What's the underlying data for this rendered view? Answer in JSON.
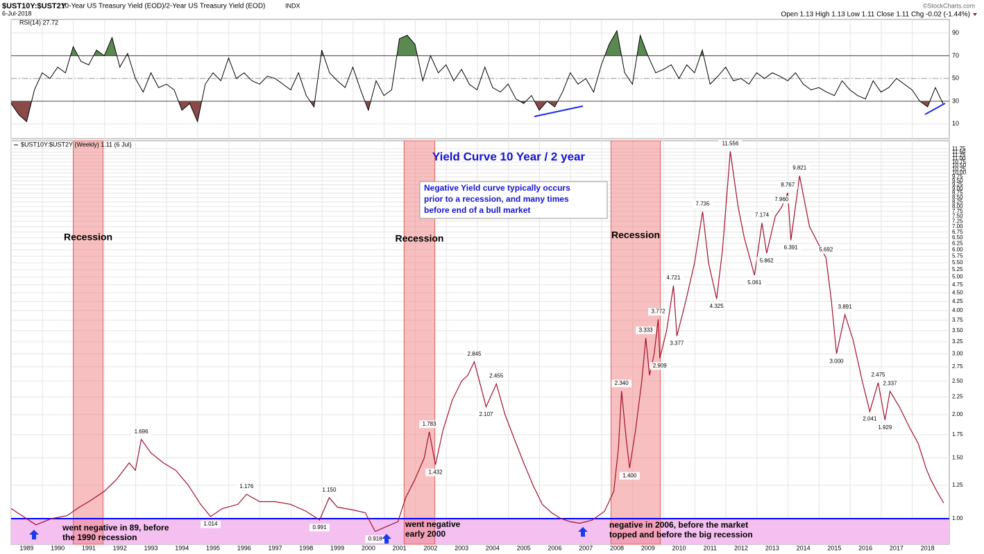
{
  "header": {
    "symbol": "$UST10Y:$UST2Y",
    "description": "10-Year US Treasury Yield (EOD)/2-Year US Treasury Yield (EOD)",
    "exchange": "INDX",
    "date": "6-Jul-2018",
    "source": "©StockCharts.com",
    "quote": "Open 1.13 High 1.13 Low 1.11 Close 1.11 Chg -0.02 (-1.44%)"
  },
  "chart_data": [
    {
      "type": "line",
      "legend": "RSI(14) 27.72",
      "color": "#000000",
      "overbought": 70,
      "oversold": 30,
      "midline": 50,
      "overbought_color": "#5a8a50",
      "oversold_color": "#8a4a48",
      "xlim": [
        1988.5,
        2018.7
      ],
      "ylim": [
        -3,
        102
      ],
      "yticks": [
        10,
        30,
        50,
        70,
        90
      ],
      "grid": true,
      "x": [
        1988.5,
        1988.75,
        1989,
        1989.25,
        1989.5,
        1989.75,
        1990,
        1990.25,
        1990.5,
        1990.75,
        1991,
        1991.25,
        1991.5,
        1991.75,
        1992,
        1992.25,
        1992.5,
        1992.75,
        1993,
        1993.25,
        1993.5,
        1993.75,
        1994,
        1994.25,
        1994.5,
        1994.75,
        1995,
        1995.25,
        1995.5,
        1995.75,
        1996,
        1996.25,
        1996.5,
        1996.75,
        1997,
        1997.25,
        1997.5,
        1997.75,
        1998,
        1998.25,
        1998.5,
        1998.75,
        1999,
        1999.25,
        1999.5,
        1999.75,
        2000,
        2000.25,
        2000.5,
        2000.75,
        2001,
        2001.25,
        2001.5,
        2001.75,
        2002,
        2002.25,
        2002.5,
        2002.75,
        2003,
        2003.25,
        2003.5,
        2003.75,
        2004,
        2004.25,
        2004.5,
        2004.75,
        2005,
        2005.25,
        2005.5,
        2005.75,
        2006,
        2006.25,
        2006.5,
        2006.75,
        2007,
        2007.25,
        2007.5,
        2007.75,
        2008,
        2008.25,
        2008.5,
        2008.75,
        2009,
        2009.25,
        2009.5,
        2009.75,
        2010,
        2010.25,
        2010.5,
        2010.75,
        2011,
        2011.25,
        2011.5,
        2011.75,
        2012,
        2012.25,
        2012.5,
        2012.75,
        2013,
        2013.25,
        2013.5,
        2013.75,
        2014,
        2014.25,
        2014.5,
        2014.75,
        2015,
        2015.25,
        2015.5,
        2015.75,
        2016,
        2016.25,
        2016.5,
        2016.75,
        2017,
        2017.25,
        2017.5,
        2017.75,
        2018,
        2018.25,
        2018.5
      ],
      "values": [
        28,
        18,
        12,
        40,
        55,
        50,
        60,
        55,
        78,
        65,
        62,
        75,
        70,
        86,
        60,
        72,
        50,
        38,
        55,
        42,
        45,
        40,
        22,
        28,
        12,
        45,
        55,
        48,
        68,
        50,
        55,
        48,
        45,
        52,
        50,
        45,
        40,
        55,
        35,
        25,
        75,
        55,
        48,
        42,
        60,
        40,
        22,
        48,
        35,
        40,
        85,
        88,
        80,
        48,
        70,
        55,
        62,
        48,
        58,
        45,
        40,
        60,
        42,
        38,
        45,
        32,
        28,
        35,
        22,
        30,
        25,
        38,
        55,
        45,
        50,
        38,
        62,
        80,
        92,
        55,
        45,
        88,
        70,
        55,
        58,
        62,
        50,
        62,
        55,
        75,
        45,
        52,
        60,
        48,
        50,
        45,
        55,
        50,
        55,
        52,
        48,
        55,
        45,
        40,
        42,
        38,
        35,
        48,
        40,
        35,
        32,
        48,
        38,
        42,
        50,
        45,
        40,
        30,
        25,
        42,
        27.72
      ]
    },
    {
      "type": "line",
      "legend": "$UST10Y:$UST2Y (Weekly) 1.11 (6 Jul)",
      "color": "#a0102c",
      "log_scale": true,
      "grid": true,
      "title": "Yield Curve 10 Year / 2 year",
      "note_box": [
        "Negative Yield curve typically occurs",
        "prior to a recession, and many times",
        "before end of a bull market"
      ],
      "notes": [
        [
          "went negative in 89, before",
          "the 1990 recession"
        ],
        [
          "went negative",
          "early 2000"
        ],
        [
          "negative in 2006, before the market",
          "topped and before the big recession"
        ]
      ],
      "reference_line": {
        "value": 1,
        "color": "#0000ff",
        "below_fill": "#f3c0f0"
      },
      "bands": [
        {
          "label": "Recession",
          "x": [
            1990.5,
            1991.46
          ]
        },
        {
          "label": "Recession",
          "x": [
            2001.15,
            2002.14
          ]
        },
        {
          "label": "Recession",
          "x": [
            2007.81,
            2009.4
          ]
        }
      ],
      "band_color": "#f08080",
      "xlim": [
        1988.5,
        2018.7
      ],
      "xticks": [
        1989,
        1990,
        1991,
        1992,
        1993,
        1994,
        1995,
        1996,
        1997,
        1998,
        1999,
        2000,
        2001,
        2002,
        2003,
        2004,
        2005,
        2006,
        2007,
        2008,
        2009,
        2010,
        2011,
        2012,
        2013,
        2014,
        2015,
        2016,
        2017,
        2018
      ],
      "ylim": [
        0.843,
        12.4
      ],
      "yticks": [
        {
          "value": 1,
          "label": "1.00"
        },
        {
          "value": 1.25,
          "label": "1.25"
        },
        {
          "value": 1.5,
          "label": "1.50"
        },
        {
          "value": 1.75,
          "label": "1.75"
        },
        {
          "value": 2,
          "label": "2.00"
        },
        {
          "value": 2.25,
          "label": "2.25"
        },
        {
          "value": 2.5,
          "label": "2.50"
        },
        {
          "value": 2.75,
          "label": "2.75"
        },
        {
          "value": 3,
          "label": "3.00"
        },
        {
          "value": 3.25,
          "label": "3.25"
        },
        {
          "value": 3.5,
          "label": "3.50"
        },
        {
          "value": 3.75,
          "label": "3.75"
        },
        {
          "value": 4,
          "label": "4.00"
        },
        {
          "value": 4.25,
          "label": "4.25"
        },
        {
          "value": 4.5,
          "label": "4.50"
        },
        {
          "value": 4.75,
          "label": "4.75"
        },
        {
          "value": 5,
          "label": "5.00"
        },
        {
          "value": 5.25,
          "label": "5.25"
        },
        {
          "value": 5.5,
          "label": "5.50"
        },
        {
          "value": 5.75,
          "label": "5.75"
        },
        {
          "value": 6,
          "label": "6.00"
        },
        {
          "value": 6.25,
          "label": "6.25"
        },
        {
          "value": 6.5,
          "label": "6.50"
        },
        {
          "value": 6.75,
          "label": "6.75"
        },
        {
          "value": 7,
          "label": "7.00"
        },
        {
          "value": 7.25,
          "label": "7.25"
        },
        {
          "value": 7.5,
          "label": "7.50"
        },
        {
          "value": 7.75,
          "label": "7.75"
        },
        {
          "value": 8,
          "label": "8.00"
        },
        {
          "value": 8.25,
          "label": "8.25"
        },
        {
          "value": 8.5,
          "label": "8.50"
        },
        {
          "value": 8.75,
          "label": "8.75"
        },
        {
          "value": 9,
          "label": "9.00"
        },
        {
          "value": 9.25,
          "label": "9.25"
        },
        {
          "value": 9.5,
          "label": "9.50"
        },
        {
          "value": 9.75,
          "label": "9.75"
        },
        {
          "value": 10,
          "label": "10.00"
        },
        {
          "value": 10.25,
          "label": "10.25"
        },
        {
          "value": 10.5,
          "label": "10.50"
        },
        {
          "value": 10.75,
          "label": "10.75"
        },
        {
          "value": 11,
          "label": "11.00"
        },
        {
          "value": 11.25,
          "label": "11.25"
        },
        {
          "value": 11.5,
          "label": "11.50"
        },
        {
          "value": 11.75,
          "label": "11.75"
        }
      ],
      "x": [
        1988.5,
        1989.3,
        1989.8,
        1990.3,
        1990.7,
        1991,
        1991.5,
        1991.9,
        1992.3,
        1992.5,
        1992.69,
        1993,
        1993.4,
        1993.8,
        1994.2,
        1994.6,
        1994.92,
        1995.3,
        1995.8,
        1996.08,
        1996.5,
        1997,
        1997.5,
        1998,
        1998.43,
        1998.74,
        1999,
        1999.5,
        1999.9,
        2000.22,
        2000.6,
        2000.95,
        2001.2,
        2001.5,
        2001.8,
        2001.96,
        2002.16,
        2002.4,
        2002.7,
        2003,
        2003.2,
        2003.41,
        2003.79,
        2004.12,
        2004.4,
        2004.7,
        2005,
        2005.3,
        2005.6,
        2005.9,
        2006.2,
        2006.5,
        2006.8,
        2007.2,
        2007.6,
        2007.9,
        2008.05,
        2008.15,
        2008.3,
        2008.41,
        2008.6,
        2008.8,
        2008.93,
        2009.05,
        2009.2,
        2009.33,
        2009.38,
        2009.6,
        2009.82,
        2009.93,
        2010.2,
        2010.5,
        2010.76,
        2010.95,
        2011.21,
        2011.4,
        2011.65,
        2011.9,
        2012.1,
        2012.43,
        2012.67,
        2012.82,
        2013.1,
        2013.3,
        2013.5,
        2013.6,
        2013.88,
        2014.2,
        2014.5,
        2014.73,
        2014.9,
        2015.07,
        2015.34,
        2015.6,
        2015.9,
        2016.14,
        2016.41,
        2016.63,
        2016.79,
        2017.1,
        2017.4,
        2017.7,
        2017.95,
        2018.1,
        2018.3,
        2018.52
      ],
      "values": [
        1.07,
        0.96,
        1.0,
        1.02,
        1.08,
        1.12,
        1.2,
        1.3,
        1.45,
        1.38,
        1.696,
        1.55,
        1.45,
        1.38,
        1.25,
        1.1,
        1.014,
        1.07,
        1.1,
        1.176,
        1.12,
        1.12,
        1.1,
        1.05,
        0.991,
        1.15,
        1.08,
        1.06,
        1.04,
        0.918,
        0.95,
        0.98,
        1.15,
        1.3,
        1.5,
        1.783,
        1.432,
        1.8,
        2.2,
        2.5,
        2.6,
        2.845,
        2.107,
        2.455,
        2.0,
        1.7,
        1.45,
        1.25,
        1.1,
        1.04,
        1.0,
        0.98,
        0.97,
        0.99,
        1.05,
        1.2,
        1.6,
        2.34,
        1.7,
        1.4,
        1.8,
        2.5,
        3.333,
        2.6,
        3.0,
        3.772,
        2.909,
        3.5,
        4.721,
        3.377,
        4.2,
        5.5,
        7.735,
        5.5,
        4.325,
        6.0,
        11.556,
        8.0,
        6.5,
        5.061,
        7.174,
        5.862,
        7.5,
        7.96,
        8.767,
        6.391,
        9.821,
        7.0,
        6.2,
        5.692,
        4.3,
        3.0,
        3.891,
        3.3,
        2.5,
        2.041,
        2.475,
        1.929,
        2.337,
        2.1,
        1.85,
        1.65,
        1.4,
        1.3,
        1.2,
        1.11
      ],
      "peaks": {
        "x": [
          1992.69,
          1996.08,
          1998.74,
          1994.92,
          1998.43,
          2000.22,
          2003.41,
          2004.12,
          2003.79,
          2001.96,
          2002.16,
          2008.15,
          2008.41,
          2008.93,
          2009.33,
          2009.38,
          2009.93,
          2009.82,
          2011.21,
          2010.76,
          2011.65,
          2012.43,
          2012.82,
          2012.67,
          2013.3,
          2013.6,
          2013.5,
          2013.88,
          2014.73,
          2015.34,
          2015.07,
          2016.41,
          2016.14,
          2016.79,
          2016.63
        ],
        "values": [
          1.696,
          1.176,
          1.15,
          1.014,
          0.991,
          0.918,
          2.845,
          2.455,
          2.107,
          1.783,
          1.432,
          2.34,
          1.4,
          3.333,
          3.772,
          2.909,
          3.377,
          4.721,
          4.325,
          7.735,
          11.556,
          5.061,
          5.862,
          7.174,
          7.96,
          6.391,
          8.767,
          9.821,
          5.692,
          3.891,
          3,
          2.475,
          2.041,
          2.337,
          1.929
        ],
        "value_labels": [
          "1.696",
          "1.176",
          "1.150",
          "1.014",
          "0.991",
          "0.918",
          "2.845",
          "2.455",
          "2.107",
          "1.783",
          "1.432",
          "2.340",
          "1.400",
          "3.333",
          "3.772",
          "2.909",
          "3.377",
          "4.721",
          "4.325",
          "7.735",
          "11.556",
          "5.061",
          "5.862",
          "7.174",
          "7.960",
          "6.391",
          "8.767",
          "9.821",
          "5.692",
          "3.891",
          "3.000",
          "2.475",
          "2.041",
          "2.337",
          "1.929"
        ]
      }
    }
  ]
}
